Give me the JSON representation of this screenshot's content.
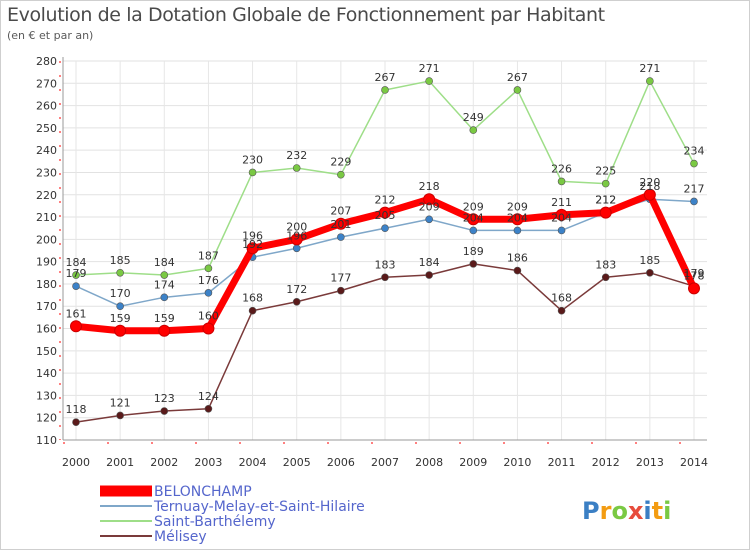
{
  "chart_data": {
    "type": "line",
    "title": "Evolution de la Dotation Globale de Fonctionnement par Habitant",
    "subtitle": "(en € et par an)",
    "xlabel": "",
    "ylabel": "",
    "x": [
      "2000",
      "2001",
      "2002",
      "2003",
      "2004",
      "2005",
      "2006",
      "2007",
      "2008",
      "2009",
      "2010",
      "2011",
      "2012",
      "2013",
      "2014"
    ],
    "ylim": [
      110,
      280
    ],
    "yticks": [
      110,
      120,
      130,
      140,
      150,
      160,
      170,
      180,
      190,
      200,
      210,
      220,
      230,
      240,
      250,
      260,
      270,
      280
    ],
    "grid": true,
    "legend": "bottom-left",
    "series": [
      {
        "name": "BELONCHAMP",
        "color": "#ff0000",
        "marker_color": "#ff0000",
        "values": [
          161,
          159,
          159,
          160,
          196,
          200,
          207,
          212,
          218,
          209,
          209,
          211,
          212,
          220,
          178
        ]
      },
      {
        "name": "Ternuay-Melay-et-Saint-Hilaire",
        "color": "#7fa7c9",
        "marker_color": "#3c82c8",
        "values": [
          179,
          170,
          174,
          176,
          192,
          196,
          201,
          205,
          209,
          204,
          204,
          204,
          212,
          218,
          217
        ]
      },
      {
        "name": "Saint-Barthélemy",
        "color": "#9ede88",
        "marker_color": "#7ac943",
        "values": [
          184,
          185,
          184,
          187,
          230,
          232,
          229,
          267,
          271,
          249,
          267,
          226,
          225,
          271,
          234
        ]
      },
      {
        "name": "Mélisey",
        "color": "#7a3a3a",
        "marker_color": "#5a1a1a",
        "values": [
          118,
          121,
          123,
          124,
          168,
          172,
          177,
          183,
          184,
          189,
          186,
          168,
          183,
          185,
          179
        ]
      }
    ]
  },
  "logo": {
    "text": "Proxiti"
  }
}
